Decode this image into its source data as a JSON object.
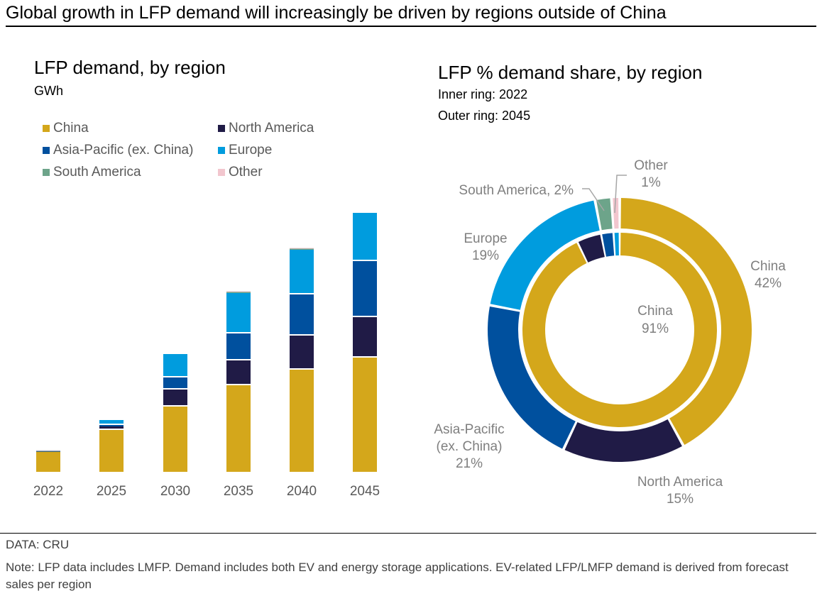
{
  "title": "Global growth in LFP demand will increasingly be driven by regions outside of China",
  "colors": {
    "China": "#D4A71B",
    "North America": "#201B46",
    "Asia-Pacific (ex. China)": "#00509E",
    "Europe": "#009CDE",
    "South America": "#6DA48A",
    "Other": "#F2C6CE"
  },
  "legend": [
    {
      "label": "China",
      "key": "China"
    },
    {
      "label": "North America",
      "key": "North America"
    },
    {
      "label": "Asia-Pacific (ex. China)",
      "key": "Asia-Pacific (ex. China)"
    },
    {
      "label": "Europe",
      "key": "Europe"
    },
    {
      "label": "South America",
      "key": "South America"
    },
    {
      "label": "Other",
      "key": "Other"
    }
  ],
  "footer": {
    "source": "DATA: CRU",
    "note": "Note: LFP data includes LMFP. Demand includes both EV and energy storage applications. EV-related LFP/LMFP demand is derived from forecast sales per region"
  },
  "chart_data": [
    {
      "type": "bar",
      "stacked": true,
      "title": "LFP demand, by region",
      "ylabel": "GWh",
      "xlabel": "",
      "axis_note": "No y-axis shown; values are relative estimates read from bar heights",
      "categories": [
        "2022",
        "2025",
        "2030",
        "2035",
        "2040",
        "2045"
      ],
      "series": [
        {
          "name": "China",
          "values": [
            29,
            59,
            92,
            122,
            144,
            161
          ]
        },
        {
          "name": "North America",
          "values": [
            0.3,
            5,
            24,
            35,
            48,
            57
          ]
        },
        {
          "name": "Asia-Pacific (ex. China)",
          "values": [
            0.3,
            2,
            17,
            38,
            58,
            79
          ]
        },
        {
          "name": "Europe",
          "values": [
            0.3,
            7,
            33,
            57,
            63,
            68
          ]
        },
        {
          "name": "South America",
          "values": [
            0,
            0,
            0,
            2,
            2,
            0
          ]
        },
        {
          "name": "Other",
          "values": [
            0.5,
            0,
            0,
            0.5,
            0.5,
            0
          ]
        }
      ],
      "legend_position": "top-left",
      "grid": false
    },
    {
      "type": "pie",
      "variant": "nested-donut",
      "title": "LFP % demand share, by region",
      "subtitle_lines": [
        "Inner ring: 2022",
        "Outer ring: 2045"
      ],
      "rings": [
        {
          "name": "2022",
          "position": "inner",
          "slices": [
            {
              "label": "China",
              "value": 91
            },
            {
              "label": "North America",
              "value": 4
            },
            {
              "label": "Asia-Pacific (ex. China)",
              "value": 2
            },
            {
              "label": "Europe",
              "value": 1
            },
            {
              "label": "South America",
              "value": 0
            },
            {
              "label": "Other",
              "value": 0
            }
          ],
          "labels": [
            {
              "label": "China",
              "text_line1": "China",
              "text_line2": "91%"
            }
          ]
        },
        {
          "name": "2045",
          "position": "outer",
          "slices": [
            {
              "label": "China",
              "value": 42
            },
            {
              "label": "North America",
              "value": 15
            },
            {
              "label": "Asia-Pacific (ex. China)",
              "value": 21
            },
            {
              "label": "Europe",
              "value": 19
            },
            {
              "label": "South America",
              "value": 2
            },
            {
              "label": "Other",
              "value": 1
            }
          ],
          "labels": [
            {
              "label": "China",
              "lines": [
                "China",
                "42%"
              ]
            },
            {
              "label": "North America",
              "lines": [
                "North America",
                "15%"
              ]
            },
            {
              "label": "Asia-Pacific (ex. China)",
              "lines": [
                "Asia-Pacific",
                "(ex. China)",
                "21%"
              ]
            },
            {
              "label": "Europe",
              "lines": [
                "Europe",
                "19%"
              ]
            },
            {
              "label": "South America",
              "lines": [
                "South America, 2%"
              ]
            },
            {
              "label": "Other",
              "lines": [
                "Other",
                "1%"
              ]
            }
          ]
        }
      ]
    }
  ]
}
